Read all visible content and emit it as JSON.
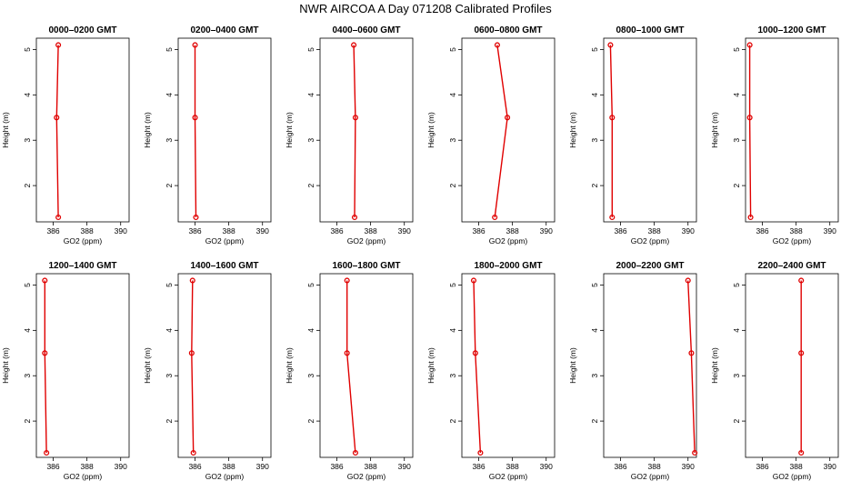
{
  "title": "NWR AIRCOA A  Day 071208  Calibrated Profiles",
  "colors": {
    "profile": "#e00000",
    "axis": "#000000"
  },
  "chart_data": {
    "type": "line",
    "xlabel": "GO2 (ppm)",
    "ylabel": "Height (m)",
    "xlim": [
      385,
      390.5
    ],
    "ylim": [
      1.2,
      5.25
    ],
    "x_ticks": [
      "386",
      "388",
      "390"
    ],
    "y_ticks": [
      "2",
      "3",
      "4",
      "5"
    ],
    "panels": [
      {
        "title": "0000–0200 GMT",
        "points": [
          {
            "x": 386.3,
            "y": 5.1
          },
          {
            "x": 386.2,
            "y": 3.5
          },
          {
            "x": 386.3,
            "y": 1.3
          }
        ]
      },
      {
        "title": "0200–0400 GMT",
        "points": [
          {
            "x": 386.0,
            "y": 5.1
          },
          {
            "x": 386.0,
            "y": 3.5
          },
          {
            "x": 386.05,
            "y": 1.3
          }
        ]
      },
      {
        "title": "0400–0600 GMT",
        "points": [
          {
            "x": 387.0,
            "y": 5.1
          },
          {
            "x": 387.1,
            "y": 3.5
          },
          {
            "x": 387.05,
            "y": 1.3
          }
        ]
      },
      {
        "title": "0600–0800 GMT",
        "points": [
          {
            "x": 387.1,
            "y": 5.1
          },
          {
            "x": 387.7,
            "y": 3.5
          },
          {
            "x": 386.95,
            "y": 1.3
          }
        ]
      },
      {
        "title": "0800–1000 GMT",
        "points": [
          {
            "x": 385.4,
            "y": 5.1
          },
          {
            "x": 385.5,
            "y": 3.5
          },
          {
            "x": 385.5,
            "y": 1.3
          }
        ]
      },
      {
        "title": "1000–1200 GMT",
        "points": [
          {
            "x": 385.25,
            "y": 5.1
          },
          {
            "x": 385.25,
            "y": 3.5
          },
          {
            "x": 385.3,
            "y": 1.3
          }
        ]
      },
      {
        "title": "1200–1400 GMT",
        "points": [
          {
            "x": 385.5,
            "y": 5.1
          },
          {
            "x": 385.5,
            "y": 3.5
          },
          {
            "x": 385.6,
            "y": 1.3
          }
        ]
      },
      {
        "title": "1400–1600 GMT",
        "points": [
          {
            "x": 385.85,
            "y": 5.1
          },
          {
            "x": 385.8,
            "y": 3.5
          },
          {
            "x": 385.9,
            "y": 1.3
          }
        ]
      },
      {
        "title": "1600–1800 GMT",
        "points": [
          {
            "x": 386.6,
            "y": 5.1
          },
          {
            "x": 386.6,
            "y": 3.5
          },
          {
            "x": 387.1,
            "y": 1.3
          }
        ]
      },
      {
        "title": "1800–2000 GMT",
        "points": [
          {
            "x": 385.7,
            "y": 5.1
          },
          {
            "x": 385.8,
            "y": 3.5
          },
          {
            "x": 386.1,
            "y": 1.3
          }
        ]
      },
      {
        "title": "2000–2200 GMT",
        "points": [
          {
            "x": 390.0,
            "y": 5.1
          },
          {
            "x": 390.2,
            "y": 3.5
          },
          {
            "x": 390.4,
            "y": 1.3
          }
        ]
      },
      {
        "title": "2200–2400 GMT",
        "points": [
          {
            "x": 388.3,
            "y": 5.1
          },
          {
            "x": 388.3,
            "y": 3.5
          },
          {
            "x": 388.3,
            "y": 1.3
          }
        ]
      }
    ]
  }
}
